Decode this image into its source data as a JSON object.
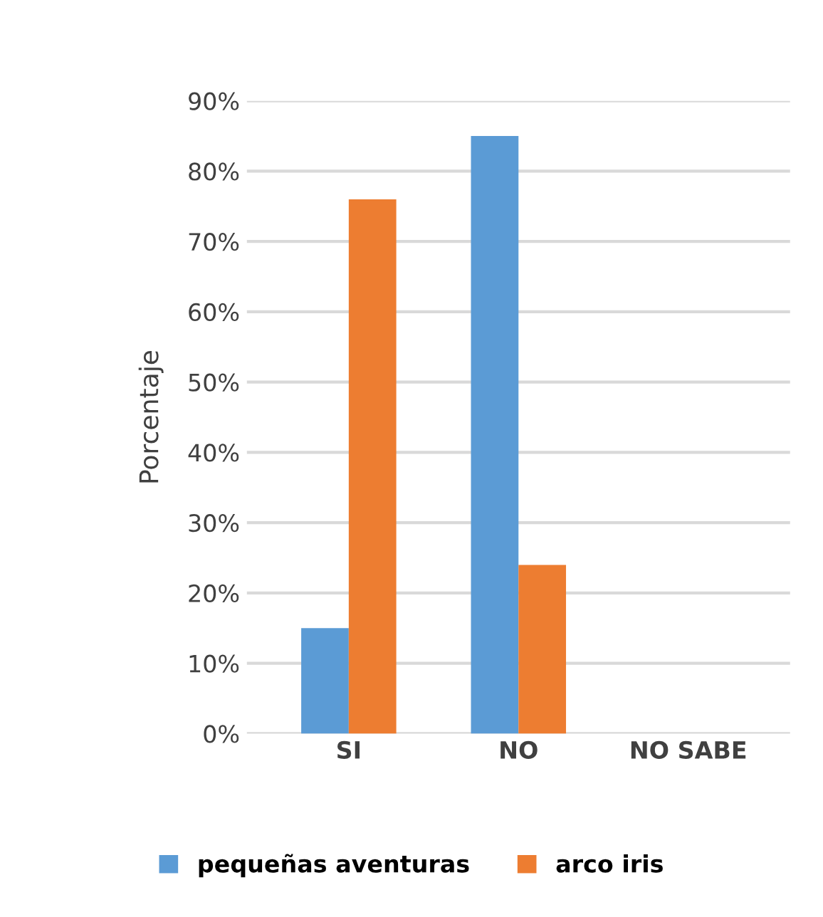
{
  "chart_data": {
    "type": "bar",
    "ylabel": "Porcentaje",
    "categories": [
      "SI",
      "NO",
      "NO SABE"
    ],
    "series": [
      {
        "name": "pequeñas aventuras",
        "color": "#5b9bd5",
        "values": [
          15,
          85,
          0
        ]
      },
      {
        "name": "arco iris",
        "color": "#ed7d31",
        "values": [
          76,
          24,
          0
        ]
      }
    ],
    "ylim": [
      0,
      90
    ],
    "yticks": [
      {
        "value": 0,
        "label": "0%"
      },
      {
        "value": 10,
        "label": "10%"
      },
      {
        "value": 20,
        "label": "20%"
      },
      {
        "value": 30,
        "label": "30%"
      },
      {
        "value": 40,
        "label": "40%"
      },
      {
        "value": 50,
        "label": "50%"
      },
      {
        "value": 60,
        "label": "60%"
      },
      {
        "value": 70,
        "label": "70%"
      },
      {
        "value": 80,
        "label": "80%"
      },
      {
        "value": 90,
        "label": "90%"
      }
    ],
    "grid": "y",
    "legend": "bottom"
  }
}
